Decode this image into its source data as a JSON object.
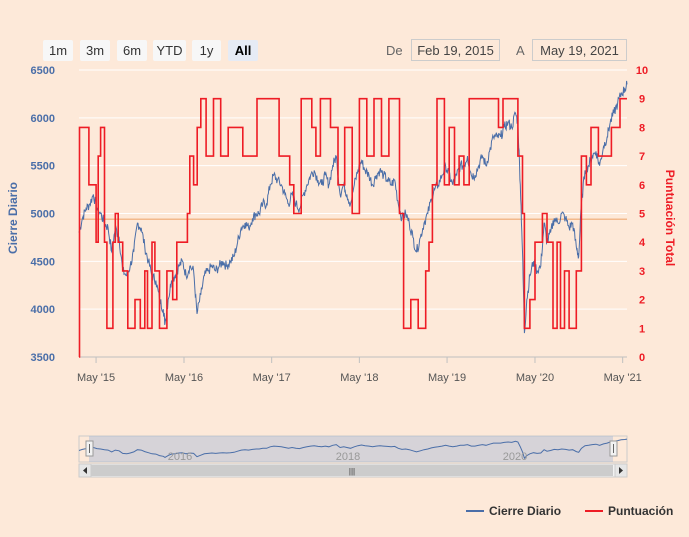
{
  "range_selector": {
    "buttons": [
      "1m",
      "3m",
      "6m",
      "YTD",
      "1y",
      "All"
    ],
    "active": "All",
    "from_label": "De",
    "to_label": "A",
    "from_value": "Feb 19, 2015",
    "to_value": "May 19, 2021"
  },
  "navigator": {
    "year_labels": [
      "2016",
      "2018",
      "2020"
    ],
    "grip_glyph": "|||"
  },
  "legend": {
    "items": [
      {
        "label": "Cierre Diario",
        "color": "#4a6ea8"
      },
      {
        "label": "Puntuación",
        "color": "#ee1c25"
      }
    ]
  },
  "colors": {
    "background": "#fde9d9",
    "price_line": "#4a6ea8",
    "score_line": "#ee1c25",
    "reference_line": "#f2b98c"
  },
  "chart_data": {
    "type": "line",
    "x_range": [
      "2015-02-19",
      "2021-05-19"
    ],
    "x_tick_labels": [
      "May '15",
      "May '16",
      "May '17",
      "May '18",
      "May '19",
      "May '20",
      "May '21"
    ],
    "x_tick_dates": [
      "2015-05-01",
      "2016-05-01",
      "2017-05-01",
      "2018-05-01",
      "2019-05-01",
      "2020-05-01",
      "2021-05-01"
    ],
    "y_left": {
      "label": "Cierre Diario",
      "range": [
        3500,
        6500
      ],
      "ticks": [
        3500,
        4000,
        4500,
        5000,
        5500,
        6000,
        6500
      ],
      "color": "#4a6ea8"
    },
    "y_right": {
      "label": "Puntuación Total",
      "range": [
        0,
        10
      ],
      "ticks": [
        0,
        1,
        2,
        3,
        4,
        5,
        6,
        7,
        8,
        9,
        10
      ],
      "color": "#ee1c25"
    },
    "reference_line": {
      "axis": "right",
      "value": 4.8
    },
    "grid": "horizontal",
    "series": [
      {
        "name": "Cierre Diario",
        "axis": "left",
        "points": [
          [
            "2015-02-19",
            4800
          ],
          [
            "2015-03-05",
            4950
          ],
          [
            "2015-03-20",
            5050
          ],
          [
            "2015-04-05",
            5100
          ],
          [
            "2015-04-20",
            5200
          ],
          [
            "2015-05-05",
            5050
          ],
          [
            "2015-05-20",
            5000
          ],
          [
            "2015-06-05",
            4900
          ],
          [
            "2015-06-20",
            4850
          ],
          [
            "2015-07-05",
            4600
          ],
          [
            "2015-07-20",
            4850
          ],
          [
            "2015-08-05",
            4750
          ],
          [
            "2015-08-20",
            4400
          ],
          [
            "2015-09-05",
            4350
          ],
          [
            "2015-09-20",
            4450
          ],
          [
            "2015-10-05",
            4600
          ],
          [
            "2015-10-20",
            4900
          ],
          [
            "2015-11-05",
            4850
          ],
          [
            "2015-11-20",
            4650
          ],
          [
            "2015-12-05",
            4500
          ],
          [
            "2015-12-20",
            4350
          ],
          [
            "2016-01-05",
            4300
          ],
          [
            "2016-01-20",
            4100
          ],
          [
            "2016-02-05",
            4000
          ],
          [
            "2016-02-12",
            3850
          ],
          [
            "2016-02-25",
            4100
          ],
          [
            "2016-03-10",
            4300
          ],
          [
            "2016-03-25",
            4350
          ],
          [
            "2016-04-10",
            4450
          ],
          [
            "2016-04-25",
            4500
          ],
          [
            "2016-05-10",
            4350
          ],
          [
            "2016-05-25",
            4450
          ],
          [
            "2016-06-10",
            4400
          ],
          [
            "2016-06-24",
            3950
          ],
          [
            "2016-07-10",
            4150
          ],
          [
            "2016-07-25",
            4350
          ],
          [
            "2016-08-10",
            4400
          ],
          [
            "2016-08-25",
            4450
          ],
          [
            "2016-09-10",
            4400
          ],
          [
            "2016-09-25",
            4450
          ],
          [
            "2016-10-10",
            4500
          ],
          [
            "2016-10-25",
            4450
          ],
          [
            "2016-11-10",
            4500
          ],
          [
            "2016-11-25",
            4550
          ],
          [
            "2016-12-10",
            4700
          ],
          [
            "2016-12-25",
            4850
          ],
          [
            "2017-01-10",
            4900
          ],
          [
            "2017-01-25",
            4850
          ],
          [
            "2017-02-10",
            4950
          ],
          [
            "2017-02-25",
            5000
          ],
          [
            "2017-03-10",
            5000
          ],
          [
            "2017-03-25",
            5100
          ],
          [
            "2017-04-10",
            5100
          ],
          [
            "2017-04-25",
            5300
          ],
          [
            "2017-05-10",
            5400
          ],
          [
            "2017-05-25",
            5350
          ],
          [
            "2017-06-10",
            5300
          ],
          [
            "2017-06-25",
            5200
          ],
          [
            "2017-07-10",
            5100
          ],
          [
            "2017-07-25",
            5200
          ],
          [
            "2017-08-10",
            5100
          ],
          [
            "2017-08-25",
            5050
          ],
          [
            "2017-09-10",
            5200
          ],
          [
            "2017-09-25",
            5300
          ],
          [
            "2017-10-10",
            5400
          ],
          [
            "2017-10-25",
            5450
          ],
          [
            "2017-11-10",
            5350
          ],
          [
            "2017-11-25",
            5300
          ],
          [
            "2017-12-10",
            5400
          ],
          [
            "2017-12-25",
            5300
          ],
          [
            "2018-01-10",
            5500
          ],
          [
            "2018-01-25",
            5600
          ],
          [
            "2018-02-10",
            5200
          ],
          [
            "2018-02-25",
            5300
          ],
          [
            "2018-03-10",
            5200
          ],
          [
            "2018-03-25",
            5100
          ],
          [
            "2018-04-10",
            5300
          ],
          [
            "2018-04-25",
            5450
          ],
          [
            "2018-05-10",
            5550
          ],
          [
            "2018-05-25",
            5450
          ],
          [
            "2018-06-10",
            5400
          ],
          [
            "2018-06-25",
            5300
          ],
          [
            "2018-07-10",
            5400
          ],
          [
            "2018-07-25",
            5450
          ],
          [
            "2018-08-10",
            5400
          ],
          [
            "2018-08-25",
            5350
          ],
          [
            "2018-09-10",
            5300
          ],
          [
            "2018-09-25",
            5350
          ],
          [
            "2018-10-10",
            5100
          ],
          [
            "2018-10-25",
            4950
          ],
          [
            "2018-11-10",
            5000
          ],
          [
            "2018-11-25",
            4900
          ],
          [
            "2018-12-10",
            4750
          ],
          [
            "2018-12-25",
            4600
          ],
          [
            "2019-01-10",
            4750
          ],
          [
            "2019-01-25",
            4900
          ],
          [
            "2019-02-10",
            5000
          ],
          [
            "2019-02-25",
            5150
          ],
          [
            "2019-03-10",
            5250
          ],
          [
            "2019-03-25",
            5300
          ],
          [
            "2019-04-10",
            5400
          ],
          [
            "2019-04-25",
            5500
          ],
          [
            "2019-05-10",
            5400
          ],
          [
            "2019-05-25",
            5300
          ],
          [
            "2019-06-10",
            5400
          ],
          [
            "2019-06-25",
            5500
          ],
          [
            "2019-07-10",
            5500
          ],
          [
            "2019-07-25",
            5600
          ],
          [
            "2019-08-10",
            5400
          ],
          [
            "2019-08-25",
            5400
          ],
          [
            "2019-09-10",
            5500
          ],
          [
            "2019-09-25",
            5600
          ],
          [
            "2019-10-10",
            5500
          ],
          [
            "2019-10-25",
            5650
          ],
          [
            "2019-11-10",
            5800
          ],
          [
            "2019-11-25",
            5800
          ],
          [
            "2019-12-10",
            5800
          ],
          [
            "2019-12-25",
            5900
          ],
          [
            "2020-01-10",
            5950
          ],
          [
            "2020-01-25",
            5900
          ],
          [
            "2020-02-10",
            6050
          ],
          [
            "2020-02-20",
            5950
          ],
          [
            "2020-03-01",
            5300
          ],
          [
            "2020-03-10",
            4600
          ],
          [
            "2020-03-18",
            3750
          ],
          [
            "2020-03-28",
            4100
          ],
          [
            "2020-04-10",
            4350
          ],
          [
            "2020-04-25",
            4500
          ],
          [
            "2020-05-10",
            4400
          ],
          [
            "2020-05-25",
            4450
          ],
          [
            "2020-06-08",
            4900
          ],
          [
            "2020-06-20",
            4700
          ],
          [
            "2020-07-05",
            4800
          ],
          [
            "2020-07-20",
            4950
          ],
          [
            "2020-08-05",
            4900
          ],
          [
            "2020-08-20",
            5000
          ],
          [
            "2020-09-05",
            4950
          ],
          [
            "2020-09-20",
            4850
          ],
          [
            "2020-10-05",
            4900
          ],
          [
            "2020-10-20",
            4650
          ],
          [
            "2020-10-30",
            4550
          ],
          [
            "2020-11-10",
            5100
          ],
          [
            "2020-11-25",
            5450
          ],
          [
            "2020-12-10",
            5500
          ],
          [
            "2020-12-25",
            5600
          ],
          [
            "2021-01-10",
            5650
          ],
          [
            "2021-01-25",
            5500
          ],
          [
            "2021-02-10",
            5700
          ],
          [
            "2021-02-25",
            5800
          ],
          [
            "2021-03-10",
            5950
          ],
          [
            "2021-03-25",
            6050
          ],
          [
            "2021-04-10",
            6150
          ],
          [
            "2021-04-25",
            6250
          ],
          [
            "2021-05-10",
            6300
          ],
          [
            "2021-05-19",
            6350
          ]
        ]
      },
      {
        "name": "Puntuación",
        "axis": "right",
        "step": true,
        "points": [
          [
            "2015-02-19",
            0
          ],
          [
            "2015-02-21",
            8
          ],
          [
            "2015-04-01",
            6
          ],
          [
            "2015-05-01",
            4
          ],
          [
            "2015-05-10",
            7
          ],
          [
            "2015-05-20",
            8
          ],
          [
            "2015-06-05",
            4
          ],
          [
            "2015-06-15",
            1
          ],
          [
            "2015-07-10",
            4
          ],
          [
            "2015-07-20",
            5
          ],
          [
            "2015-08-01",
            4
          ],
          [
            "2015-08-20",
            3
          ],
          [
            "2015-09-10",
            1
          ],
          [
            "2015-10-10",
            2
          ],
          [
            "2015-11-01",
            1
          ],
          [
            "2015-11-20",
            3
          ],
          [
            "2015-12-01",
            1
          ],
          [
            "2015-12-20",
            4
          ],
          [
            "2016-01-01",
            3
          ],
          [
            "2016-01-20",
            1
          ],
          [
            "2016-02-20",
            3
          ],
          [
            "2016-03-15",
            2
          ],
          [
            "2016-04-01",
            4
          ],
          [
            "2016-05-15",
            5
          ],
          [
            "2016-05-25",
            7
          ],
          [
            "2016-06-10",
            6
          ],
          [
            "2016-06-25",
            8
          ],
          [
            "2016-07-10",
            9
          ],
          [
            "2016-08-01",
            7
          ],
          [
            "2016-09-01",
            9
          ],
          [
            "2016-10-01",
            7
          ],
          [
            "2016-11-01",
            8
          ],
          [
            "2017-01-01",
            7
          ],
          [
            "2017-03-01",
            9
          ],
          [
            "2017-06-01",
            7
          ],
          [
            "2017-07-15",
            6
          ],
          [
            "2017-08-01",
            5
          ],
          [
            "2017-09-01",
            9
          ],
          [
            "2017-10-15",
            8
          ],
          [
            "2017-11-01",
            7
          ],
          [
            "2017-11-20",
            9
          ],
          [
            "2018-01-01",
            8
          ],
          [
            "2018-02-01",
            6
          ],
          [
            "2018-03-01",
            8
          ],
          [
            "2018-04-01",
            5
          ],
          [
            "2018-05-01",
            9
          ],
          [
            "2018-06-01",
            7
          ],
          [
            "2018-07-01",
            9
          ],
          [
            "2018-08-01",
            7
          ],
          [
            "2018-09-01",
            9
          ],
          [
            "2018-10-15",
            5
          ],
          [
            "2018-11-01",
            1
          ],
          [
            "2018-12-01",
            2
          ],
          [
            "2019-01-01",
            1
          ],
          [
            "2019-02-01",
            3
          ],
          [
            "2019-02-15",
            4
          ],
          [
            "2019-03-01",
            6
          ],
          [
            "2019-03-20",
            9
          ],
          [
            "2019-04-20",
            6
          ],
          [
            "2019-05-10",
            8
          ],
          [
            "2019-06-01",
            6
          ],
          [
            "2019-06-20",
            7
          ],
          [
            "2019-07-10",
            6
          ],
          [
            "2019-08-01",
            9
          ],
          [
            "2019-12-01",
            8
          ],
          [
            "2019-12-20",
            9
          ],
          [
            "2020-02-20",
            7
          ],
          [
            "2020-03-10",
            5
          ],
          [
            "2020-03-18",
            1
          ],
          [
            "2020-04-10",
            2
          ],
          [
            "2020-05-01",
            4
          ],
          [
            "2020-06-01",
            5
          ],
          [
            "2020-06-20",
            4
          ],
          [
            "2020-07-15",
            1
          ],
          [
            "2020-08-01",
            4
          ],
          [
            "2020-08-15",
            1
          ],
          [
            "2020-09-01",
            3
          ],
          [
            "2020-09-20",
            1
          ],
          [
            "2020-10-20",
            3
          ],
          [
            "2020-11-10",
            7
          ],
          [
            "2020-12-01",
            6
          ],
          [
            "2020-12-20",
            8
          ],
          [
            "2021-01-20",
            7
          ],
          [
            "2021-03-15",
            8
          ],
          [
            "2021-04-20",
            9
          ],
          [
            "2021-05-19",
            9
          ]
        ]
      }
    ]
  }
}
